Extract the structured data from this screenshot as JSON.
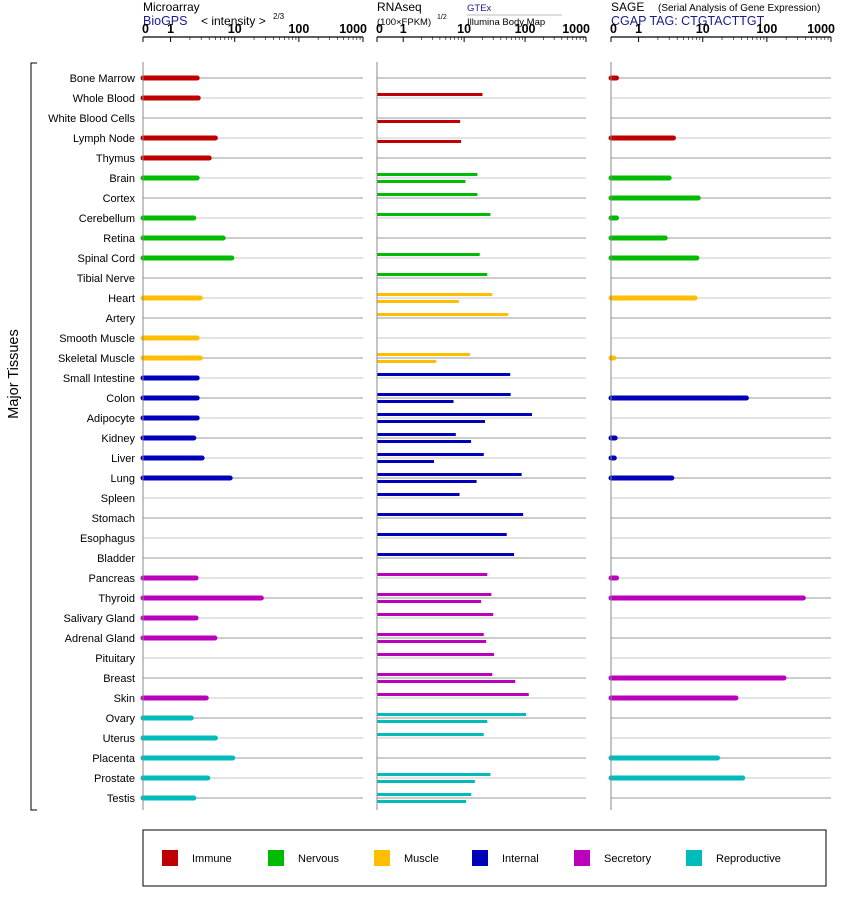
{
  "panels": {
    "microarray": {
      "title": "Microarray",
      "source": "BioGPS",
      "metric": "< intensity >",
      "exponent": "2/3"
    },
    "rnaseq": {
      "title": "RNAseq",
      "metric": "(100×FPKM)",
      "exponent": "1/2",
      "source1": "GTEx",
      "source2": "Illumina Body Map"
    },
    "sage": {
      "title": "SAGE",
      "subtitle": "(Serial Analysis of Gene Expression)",
      "tag": "CGAP TAG: CTGTACTTGT"
    }
  },
  "y_group_label": "Major Tissues",
  "legend": [
    {
      "key": "immune",
      "label": "Immune",
      "color": "#c00000"
    },
    {
      "key": "nervous",
      "label": "Nervous",
      "color": "#00bb00"
    },
    {
      "key": "muscle",
      "label": "Muscle",
      "color": "#ffbf00"
    },
    {
      "key": "internal",
      "label": "Internal",
      "color": "#0000bb"
    },
    {
      "key": "secretory",
      "label": "Secretory",
      "color": "#bb00bb"
    },
    {
      "key": "reproductive",
      "label": "Reproductive",
      "color": "#00bbbb"
    }
  ],
  "chart_data": {
    "type": "bar",
    "x_scale": "log",
    "x_ticks": [
      "0",
      "1",
      "10",
      "100",
      "1000"
    ],
    "tissues": [
      {
        "name": "Bone Marrow",
        "group": "immune",
        "microarray": 2.6,
        "gtex": null,
        "ibm": null,
        "sage": 0.2
      },
      {
        "name": "Whole Blood",
        "group": "immune",
        "microarray": 2.7,
        "gtex": 20,
        "ibm": null,
        "sage": null
      },
      {
        "name": "White Blood Cells",
        "group": "immune",
        "microarray": null,
        "gtex": null,
        "ibm": 8.6,
        "sage": null
      },
      {
        "name": "Lymph Node",
        "group": "immune",
        "microarray": 5,
        "gtex": null,
        "ibm": 8.9,
        "sage": 3.5
      },
      {
        "name": "Thymus",
        "group": "immune",
        "microarray": 4,
        "gtex": null,
        "ibm": null,
        "sage": null
      },
      {
        "name": "Brain",
        "group": "nervous",
        "microarray": 2.6,
        "gtex": 16.5,
        "ibm": 10.5,
        "sage": 3.0
      },
      {
        "name": "Cortex",
        "group": "nervous",
        "microarray": null,
        "gtex": 16.5,
        "ibm": null,
        "sage": 8.5
      },
      {
        "name": "Cerebellum",
        "group": "nervous",
        "microarray": 2.3,
        "gtex": 27,
        "ibm": null,
        "sage": 0.2
      },
      {
        "name": "Retina",
        "group": "nervous",
        "microarray": 6.6,
        "gtex": null,
        "ibm": null,
        "sage": 2.6
      },
      {
        "name": "Spinal Cord",
        "group": "nervous",
        "microarray": 9,
        "gtex": 18,
        "ibm": null,
        "sage": 8.1
      },
      {
        "name": "Tibial Nerve",
        "group": "nervous",
        "microarray": null,
        "gtex": 24,
        "ibm": null,
        "sage": null
      },
      {
        "name": "Heart",
        "group": "muscle",
        "microarray": 2.9,
        "gtex": 29,
        "ibm": 8.2,
        "sage": 7.6
      },
      {
        "name": "Artery",
        "group": "muscle",
        "microarray": null,
        "gtex": 53,
        "ibm": null,
        "sage": null
      },
      {
        "name": "Smooth Muscle",
        "group": "muscle",
        "microarray": 2.6,
        "gtex": null,
        "ibm": null,
        "sage": null
      },
      {
        "name": "Skeletal Muscle",
        "group": "muscle",
        "microarray": 2.9,
        "gtex": 12.5,
        "ibm": 3.5,
        "sage": 0.1
      },
      {
        "name": "Small Intestine",
        "group": "internal",
        "microarray": 2.6,
        "gtex": 57,
        "ibm": null,
        "sage": null
      },
      {
        "name": "Colon",
        "group": "internal",
        "microarray": 2.6,
        "gtex": 58,
        "ibm": 6.7,
        "sage": 48
      },
      {
        "name": "Adipocyte",
        "group": "internal",
        "microarray": 2.6,
        "gtex": 130,
        "ibm": 22,
        "sage": null
      },
      {
        "name": "Kidney",
        "group": "internal",
        "microarray": 2.3,
        "gtex": 7.3,
        "ibm": 13,
        "sage": 0.15
      },
      {
        "name": "Liver",
        "group": "internal",
        "microarray": 3.1,
        "gtex": 21,
        "ibm": 3.2,
        "sage": 0.12
      },
      {
        "name": "Lung",
        "group": "internal",
        "microarray": 8.5,
        "gtex": 88,
        "ibm": 16,
        "sage": 3.3
      },
      {
        "name": "Spleen",
        "group": "internal",
        "microarray": null,
        "gtex": 8.4,
        "ibm": null,
        "sage": null
      },
      {
        "name": "Stomach",
        "group": "internal",
        "microarray": null,
        "gtex": 93,
        "ibm": null,
        "sage": null
      },
      {
        "name": "Esophagus",
        "group": "internal",
        "microarray": null,
        "gtex": 50,
        "ibm": null,
        "sage": null
      },
      {
        "name": "Bladder",
        "group": "internal",
        "microarray": null,
        "gtex": 66,
        "ibm": null,
        "sage": null
      },
      {
        "name": "Pancreas",
        "group": "secretory",
        "microarray": 2.5,
        "gtex": 24,
        "ibm": null,
        "sage": 0.2
      },
      {
        "name": "Thyroid",
        "group": "secretory",
        "microarray": 26,
        "gtex": 28,
        "ibm": 19,
        "sage": 370
      },
      {
        "name": "Salivary Gland",
        "group": "secretory",
        "microarray": 2.5,
        "gtex": 30,
        "ibm": null,
        "sage": null
      },
      {
        "name": "Adrenal Gland",
        "group": "secretory",
        "microarray": 4.9,
        "gtex": 21,
        "ibm": 23,
        "sage": null
      },
      {
        "name": "Pituitary",
        "group": "secretory",
        "microarray": null,
        "gtex": 31,
        "ibm": null,
        "sage": null
      },
      {
        "name": "Breast",
        "group": "secretory",
        "microarray": null,
        "gtex": 29,
        "ibm": 69,
        "sage": 185
      },
      {
        "name": "Skin",
        "group": "secretory",
        "microarray": 3.6,
        "gtex": 115,
        "ibm": null,
        "sage": 33
      },
      {
        "name": "Ovary",
        "group": "reproductive",
        "microarray": 2.1,
        "gtex": 104,
        "ibm": 24,
        "sage": null
      },
      {
        "name": "Uterus",
        "group": "reproductive",
        "microarray": 5,
        "gtex": 21,
        "ibm": null,
        "sage": null
      },
      {
        "name": "Placenta",
        "group": "reproductive",
        "microarray": 9.3,
        "gtex": null,
        "ibm": null,
        "sage": 17
      },
      {
        "name": "Prostate",
        "group": "reproductive",
        "microarray": 3.8,
        "gtex": 27,
        "ibm": 15,
        "sage": 42
      },
      {
        "name": "Testis",
        "group": "reproductive",
        "microarray": 2.3,
        "gtex": 13.1,
        "ibm": 10.8,
        "sage": null
      }
    ]
  }
}
